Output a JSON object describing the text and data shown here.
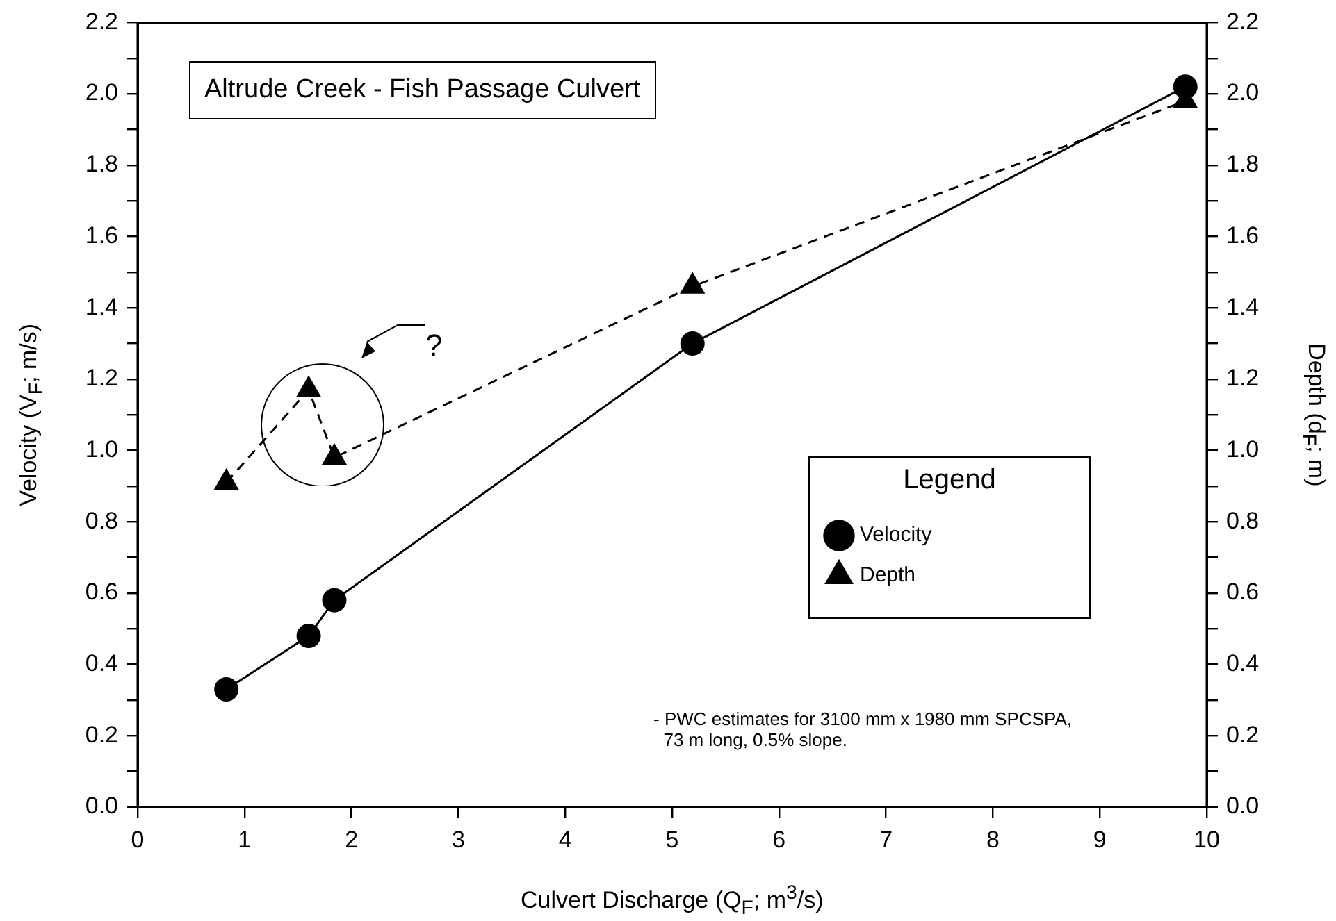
{
  "chart_data": {
    "type": "line",
    "title": "Altrude Creek - Fish Passage Culvert",
    "xlabel": "Culvert Discharge (Q$_{F}$; m$^{3}$/s)",
    "ylabel": "Velocity (V$_{F}$; m/s)",
    "y2label": "Depth (d$_{F}$; m)",
    "legend_title": "Legend",
    "legend": "right",
    "grid": false,
    "x": [
      0.83,
      1.6,
      1.84,
      5.19,
      9.8
    ],
    "series": [
      {
        "name": "Velocity",
        "color": "#000000",
        "marker": "circle",
        "line_style": "solid",
        "values": [
          0.33,
          0.48,
          0.58,
          1.3,
          2.02
        ]
      },
      {
        "name": "Depth",
        "color": "#000000",
        "marker": "triangle",
        "line_style": "dashed",
        "axis": "y2",
        "values": [
          0.91,
          1.17,
          0.98,
          1.46,
          1.98
        ]
      }
    ],
    "xlim": [
      0,
      10
    ],
    "xticks": [
      0,
      1,
      2,
      3,
      4,
      5,
      6,
      7,
      8,
      9,
      10
    ],
    "ylim": [
      0,
      2.2
    ],
    "yticks": [
      {
        "value": 0,
        "label": "0.0"
      },
      {
        "value": 0.1,
        "label": null
      },
      {
        "value": 0.2,
        "label": "0.2"
      },
      {
        "value": 0.3,
        "label": null
      },
      {
        "value": 0.4,
        "label": "0.4"
      },
      {
        "value": 0.5,
        "label": null
      },
      {
        "value": 0.6,
        "label": "0.6"
      },
      {
        "value": 0.7,
        "label": null
      },
      {
        "value": 0.8,
        "label": "0.8"
      },
      {
        "value": 0.9,
        "label": null
      },
      {
        "value": 1,
        "label": "1.0"
      },
      {
        "value": 1.1,
        "label": null
      },
      {
        "value": 1.2,
        "label": "1.2"
      },
      {
        "value": 1.3,
        "label": null
      },
      {
        "value": 1.4,
        "label": "1.4"
      },
      {
        "value": 1.5,
        "label": null
      },
      {
        "value": 1.6,
        "label": "1.6"
      },
      {
        "value": 1.7,
        "label": null
      },
      {
        "value": 1.8,
        "label": "1.8"
      },
      {
        "value": 1.9,
        "label": null
      },
      {
        "value": 2,
        "label": "2.0"
      },
      {
        "value": 2.1,
        "label": null
      },
      {
        "value": 2.2,
        "label": "2.2"
      }
    ],
    "y2lim": [
      0,
      2.2
    ],
    "y2ticks": [
      {
        "value": 0,
        "label": "0.0"
      },
      {
        "value": 0.1,
        "label": null
      },
      {
        "value": 0.2,
        "label": "0.2"
      },
      {
        "value": 0.3,
        "label": null
      },
      {
        "value": 0.4,
        "label": "0.4"
      },
      {
        "value": 0.5,
        "label": null
      },
      {
        "value": 0.6,
        "label": "0.6"
      },
      {
        "value": 0.7,
        "label": null
      },
      {
        "value": 0.8,
        "label": "0.8"
      },
      {
        "value": 0.9,
        "label": null
      },
      {
        "value": 1,
        "label": "1.0"
      },
      {
        "value": 1.1,
        "label": null
      },
      {
        "value": 1.2,
        "label": "1.2"
      },
      {
        "value": 1.3,
        "label": null
      },
      {
        "value": 1.4,
        "label": "1.4"
      },
      {
        "value": 1.5,
        "label": null
      },
      {
        "value": 1.6,
        "label": "1.6"
      },
      {
        "value": 1.7,
        "label": null
      },
      {
        "value": 1.8,
        "label": "1.8"
      },
      {
        "value": 1.9,
        "label": null
      },
      {
        "value": 2,
        "label": "2.0"
      },
      {
        "value": 2.1,
        "label": null
      },
      {
        "value": 2.2,
        "label": "2.2"
      }
    ],
    "annotations": [
      "?",
      "- PWC estimates for 3100 mm x 1980 mm SPCSPA,\n  73 m long, 0.5% slope."
    ]
  }
}
